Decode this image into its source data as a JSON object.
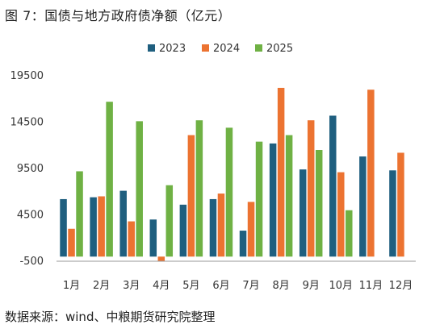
{
  "title": "图 7：国债与地方政府债净额（亿元）",
  "source": "数据来源：wind、中粮期货研究院整理",
  "chart_data": {
    "type": "bar",
    "categories": [
      "1月",
      "2月",
      "3月",
      "4月",
      "5月",
      "6月",
      "7月",
      "8月",
      "9月",
      "10月",
      "11月",
      "12月"
    ],
    "series": [
      {
        "name": "2023",
        "color": "#1f5f7f",
        "values": [
          6200,
          6400,
          7100,
          4000,
          5600,
          6200,
          2800,
          12200,
          9400,
          15200,
          10800,
          9300
        ]
      },
      {
        "name": "2024",
        "color": "#ec7331",
        "values": [
          3000,
          6500,
          3800,
          -500,
          13100,
          6800,
          5900,
          18200,
          14700,
          9100,
          18000,
          11200
        ]
      },
      {
        "name": "2025",
        "color": "#6fb144",
        "values": [
          9200,
          16700,
          14600,
          7700,
          14700,
          13900,
          12400,
          13100,
          11500,
          5000,
          null,
          null
        ]
      }
    ],
    "yticks": [
      -500,
      4500,
      9500,
      14500,
      19500
    ],
    "ylim": [
      -500,
      19500
    ],
    "legend": "top-center",
    "grid": false
  }
}
